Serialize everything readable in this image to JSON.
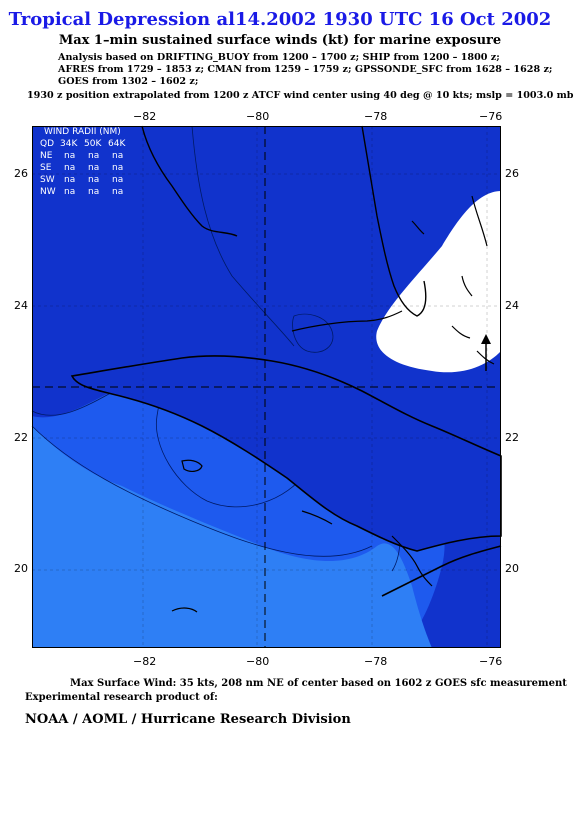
{
  "header": {
    "title": "Tropical Depression al14.2002 1930 UTC 16 Oct 2002",
    "subtitle": "Max 1–min sustained surface winds (kt) for marine exposure",
    "analysis_lines": [
      "Analysis based on  DRIFTING_BUOY from 1200 – 1700 z;  SHIP from 1200 – 1800 z;",
      "AFRES from 1729 – 1853 z;  CMAN from 1259 – 1759 z;  GPSSONDE_SFC from 1628 – 1628 z;",
      "GOES from 1302 – 1602 z;"
    ],
    "position_note": "1930 z position extrapolated from 1200 z ATCF wind center using 40 deg @ 10 kts; mslp = 1003.0 mb"
  },
  "map": {
    "lon_ticks": [
      "−82",
      "−80",
      "−78",
      "−76"
    ],
    "lat_ticks": [
      "26",
      "24",
      "22",
      "20"
    ],
    "lon_range": [
      -84,
      -75.8
    ],
    "lat_range": [
      18.7,
      26.7
    ],
    "center": {
      "lon": -79.8,
      "lat": 22.75
    },
    "colors": {
      "dark_blue": "#1133cc",
      "mid_blue": "#1e5aee",
      "light_blue": "#2e7ff5",
      "high_wind": "#ffffff",
      "coast": "#000000"
    },
    "wind_radii": {
      "title": "WIND RADII (NM)",
      "header": [
        "QD",
        "34K",
        "50K",
        "64K"
      ],
      "rows": [
        [
          "NE",
          "na",
          "na",
          "na"
        ],
        [
          "SE",
          "na",
          "na",
          "na"
        ],
        [
          "SW",
          "na",
          "na",
          "na"
        ],
        [
          "NW",
          "na",
          "na",
          "na"
        ]
      ]
    }
  },
  "footer": {
    "max_wind": "Max Surface Wind: 35 kts, 208 nm NE of center based on 1602 z GOES sfc measurement",
    "credit": "Experimental research product of:",
    "org": "NOAA / AOML / Hurricane Research Division"
  }
}
